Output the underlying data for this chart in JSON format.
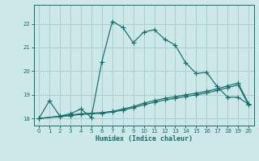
{
  "xlabel": "Humidex (Indice chaleur)",
  "bg_color": "#cce8e8",
  "grid_color": "#aacece",
  "line_color": "#1a6b6b",
  "xlim": [
    -0.5,
    20.5
  ],
  "ylim": [
    17.7,
    22.8
  ],
  "yticks": [
    18,
    19,
    20,
    21,
    22
  ],
  "xticks": [
    0,
    1,
    2,
    3,
    4,
    5,
    6,
    7,
    8,
    9,
    10,
    11,
    12,
    13,
    14,
    15,
    16,
    17,
    18,
    19,
    20
  ],
  "line1_x": [
    0,
    1,
    2,
    3,
    4,
    5,
    6,
    7,
    8,
    9,
    10,
    11,
    12,
    13,
    14,
    15,
    16,
    17,
    18,
    19,
    20
  ],
  "line1_y": [
    18.0,
    18.75,
    18.1,
    18.2,
    18.4,
    18.05,
    20.4,
    22.1,
    21.85,
    21.2,
    21.65,
    21.75,
    21.35,
    21.1,
    20.35,
    19.9,
    19.95,
    19.35,
    18.9,
    18.9,
    18.6
  ],
  "line2_x": [
    0,
    2,
    3,
    4,
    5,
    6,
    7,
    8,
    9,
    10,
    11,
    12,
    13,
    14,
    15,
    16,
    17,
    18,
    19,
    20
  ],
  "line2_y": [
    18.0,
    18.1,
    18.15,
    18.2,
    18.22,
    18.25,
    18.3,
    18.4,
    18.5,
    18.65,
    18.75,
    18.85,
    18.92,
    19.0,
    19.07,
    19.15,
    19.25,
    19.38,
    19.5,
    18.63
  ],
  "line3_x": [
    0,
    2,
    3,
    4,
    5,
    6,
    7,
    8,
    9,
    10,
    11,
    12,
    13,
    14,
    15,
    16,
    17,
    18,
    19,
    20
  ],
  "line3_y": [
    18.0,
    18.08,
    18.12,
    18.17,
    18.2,
    18.22,
    18.27,
    18.35,
    18.45,
    18.58,
    18.68,
    18.78,
    18.85,
    18.93,
    19.0,
    19.08,
    19.18,
    19.3,
    19.42,
    18.57
  ]
}
